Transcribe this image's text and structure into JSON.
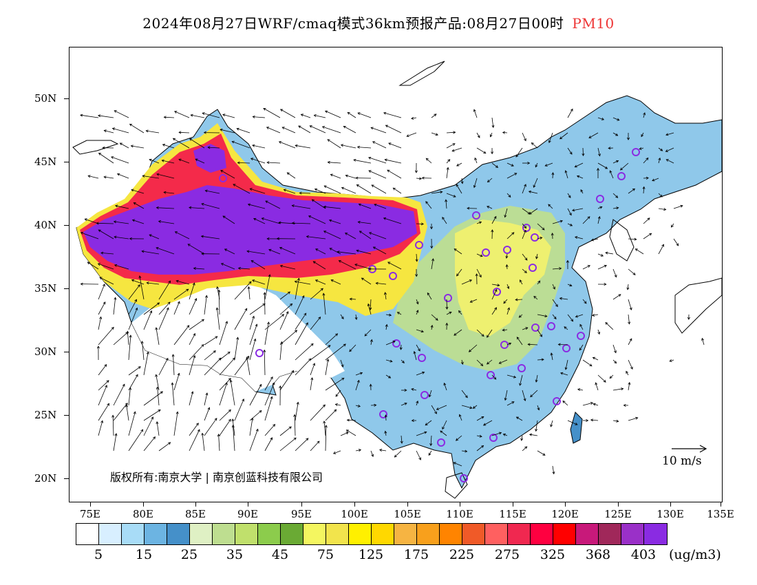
{
  "title": {
    "text": "2024年08月27日WRF/cmaq模式36km预报产品:08月27日00时",
    "variable": "PM10"
  },
  "map": {
    "lat_ticks": [
      "50N",
      "45N",
      "40N",
      "35N",
      "30N",
      "25N",
      "20N"
    ],
    "lon_ticks": [
      "75E",
      "80E",
      "85E",
      "90E",
      "95E",
      "100E",
      "105E",
      "110E",
      "115E",
      "120E",
      "125E",
      "130E",
      "135E"
    ],
    "copyright": "版权所有:南京大学 | 南京创蓝科技有限公司",
    "wind_reference": "10 m/s"
  },
  "legend": {
    "colors": [
      "#ffffff",
      "#d8efff",
      "#a8dcf7",
      "#6cb4e2",
      "#4590c9",
      "#dff0c4",
      "#bede90",
      "#c0e06c",
      "#8ccc4c",
      "#6aaa34",
      "#f4f660",
      "#f2e44c",
      "#fff000",
      "#ffd800",
      "#f6b442",
      "#f8a01c",
      "#ff8400",
      "#f05a28",
      "#ff6060",
      "#f02850",
      "#ff0040",
      "#ff0000",
      "#c8197a",
      "#a0285a",
      "#9a30c8",
      "#8a2be2"
    ],
    "labels": [
      "5",
      "15",
      "25",
      "35",
      "45",
      "75",
      "125",
      "175",
      "225",
      "275",
      "325",
      "368",
      "403"
    ],
    "units": "(ug/m3)"
  }
}
